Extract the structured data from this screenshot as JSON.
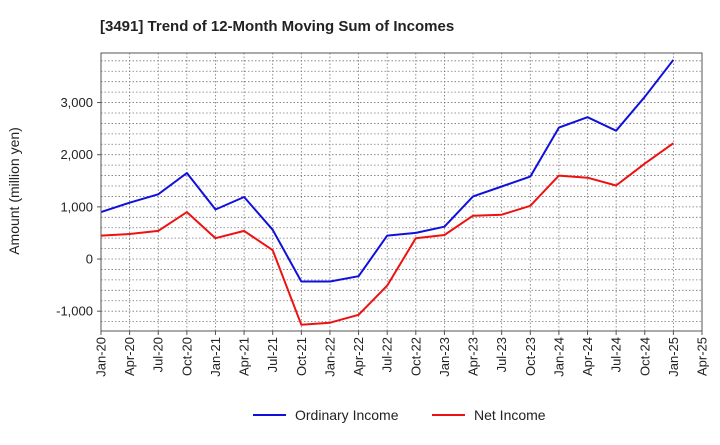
{
  "chart_data": {
    "type": "line",
    "title": "[3491]  Trend of 12-Month Moving Sum of Incomes",
    "xlabel": "",
    "ylabel": "Amount (million yen)",
    "ylim": [
      -1380,
      3950
    ],
    "yticks": [
      -1000,
      0,
      1000,
      2000,
      3000
    ],
    "ytick_labels": [
      "-1,000",
      "0",
      "1,000",
      "2,000",
      "3,000"
    ],
    "grid": true,
    "legend_position": "bottom",
    "x_tick_labels": [
      "Jan-20",
      "Apr-20",
      "Jul-20",
      "Oct-20",
      "Jan-21",
      "Apr-21",
      "Jul-21",
      "Oct-21",
      "Jan-22",
      "Apr-22",
      "Jul-22",
      "Oct-22",
      "Jan-23",
      "Apr-23",
      "Jul-23",
      "Oct-23",
      "Jan-24",
      "Apr-24",
      "Jul-24",
      "Oct-24",
      "Jan-25",
      "Apr-25"
    ],
    "series": [
      {
        "name": "Ordinary Income",
        "color": "#1010dd",
        "values": [
          900,
          1080,
          1240,
          1650,
          950,
          1190,
          560,
          -430,
          -430,
          -330,
          450,
          500,
          620,
          1200,
          1390,
          1580,
          2520,
          2720,
          2460,
          3110,
          3820
        ]
      },
      {
        "name": "Net Income",
        "color": "#ee1111",
        "values": [
          450,
          480,
          540,
          900,
          400,
          540,
          170,
          -1260,
          -1220,
          -1070,
          -510,
          400,
          460,
          830,
          850,
          1020,
          1600,
          1560,
          1410,
          1830,
          2220
        ]
      }
    ]
  }
}
